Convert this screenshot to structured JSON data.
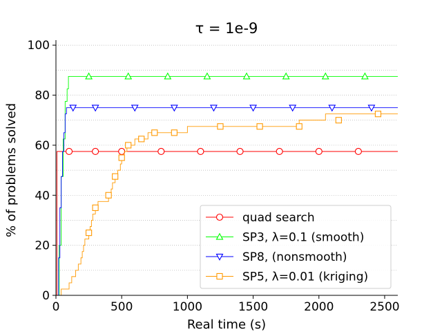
{
  "chart_data": {
    "type": "line",
    "title": "τ = 1e-9",
    "xlabel": "Real time (s)",
    "ylabel": "% of problems solved",
    "xlim": [
      0,
      2600
    ],
    "ylim": [
      0,
      102
    ],
    "xticks": [
      0,
      500,
      1000,
      1500,
      2000,
      2500
    ],
    "yticks": [
      0,
      20,
      40,
      60,
      80,
      100
    ],
    "grid": "horizontal-dotted",
    "legend_position": "lower-right",
    "series": [
      {
        "name": "quad search",
        "color": "#ff0000",
        "marker": "circle",
        "points": [
          [
            0,
            0
          ],
          [
            8,
            0
          ],
          [
            8,
            57.5
          ],
          [
            2600,
            57.5
          ]
        ],
        "markers_x": [
          100,
          300,
          500,
          800,
          1100,
          1400,
          1700,
          2000,
          2300
        ]
      },
      {
        "name": "SP3, λ=0.1 (smooth)",
        "color": "#00ff00",
        "marker": "triangle-up",
        "points": [
          [
            0,
            0
          ],
          [
            25,
            0
          ],
          [
            25,
            20
          ],
          [
            40,
            20
          ],
          [
            40,
            47.5
          ],
          [
            55,
            47.5
          ],
          [
            55,
            62.5
          ],
          [
            70,
            62.5
          ],
          [
            70,
            77.5
          ],
          [
            85,
            77.5
          ],
          [
            85,
            82.5
          ],
          [
            95,
            82.5
          ],
          [
            95,
            87.5
          ],
          [
            2600,
            87.5
          ]
        ],
        "markers_x": [
          250,
          550,
          850,
          1150,
          1450,
          1750,
          2050,
          2350
        ]
      },
      {
        "name": "SP8, (nonsmooth)",
        "color": "#0000ff",
        "marker": "triangle-down",
        "points": [
          [
            0,
            0
          ],
          [
            20,
            0
          ],
          [
            20,
            15
          ],
          [
            30,
            15
          ],
          [
            30,
            35
          ],
          [
            40,
            35
          ],
          [
            40,
            47.5
          ],
          [
            50,
            47.5
          ],
          [
            50,
            57.5
          ],
          [
            60,
            57.5
          ],
          [
            60,
            65
          ],
          [
            70,
            65
          ],
          [
            70,
            72.5
          ],
          [
            80,
            72.5
          ],
          [
            80,
            75
          ],
          [
            2600,
            75
          ]
        ],
        "markers_x": [
          130,
          300,
          600,
          900,
          1200,
          1500,
          1800,
          2100,
          2400
        ]
      },
      {
        "name": "SP5, λ=0.01 (kriging)",
        "color": "#ff9900",
        "marker": "square",
        "points": [
          [
            0,
            0
          ],
          [
            40,
            0
          ],
          [
            40,
            2.5
          ],
          [
            100,
            2.5
          ],
          [
            100,
            5
          ],
          [
            120,
            5
          ],
          [
            120,
            7.5
          ],
          [
            150,
            7.5
          ],
          [
            150,
            10
          ],
          [
            170,
            10
          ],
          [
            170,
            12.5
          ],
          [
            190,
            12.5
          ],
          [
            190,
            15
          ],
          [
            200,
            15
          ],
          [
            200,
            17.5
          ],
          [
            210,
            17.5
          ],
          [
            210,
            20
          ],
          [
            220,
            20
          ],
          [
            220,
            22.5
          ],
          [
            250,
            22.5
          ],
          [
            250,
            25
          ],
          [
            260,
            25
          ],
          [
            260,
            27.5
          ],
          [
            270,
            27.5
          ],
          [
            270,
            30
          ],
          [
            280,
            30
          ],
          [
            280,
            32.5
          ],
          [
            300,
            32.5
          ],
          [
            300,
            35
          ],
          [
            320,
            35
          ],
          [
            320,
            37.5
          ],
          [
            400,
            37.5
          ],
          [
            400,
            40
          ],
          [
            420,
            40
          ],
          [
            420,
            42.5
          ],
          [
            430,
            42.5
          ],
          [
            430,
            45
          ],
          [
            450,
            45
          ],
          [
            450,
            47.5
          ],
          [
            470,
            47.5
          ],
          [
            470,
            50
          ],
          [
            490,
            50
          ],
          [
            490,
            52.5
          ],
          [
            500,
            52.5
          ],
          [
            500,
            55
          ],
          [
            520,
            55
          ],
          [
            520,
            57.5
          ],
          [
            540,
            57.5
          ],
          [
            540,
            60
          ],
          [
            600,
            60
          ],
          [
            600,
            62.5
          ],
          [
            700,
            62.5
          ],
          [
            700,
            65
          ],
          [
            1000,
            65
          ],
          [
            1000,
            67.5
          ],
          [
            1850,
            67.5
          ],
          [
            1850,
            70
          ],
          [
            2050,
            70
          ],
          [
            2050,
            72.5
          ],
          [
            2600,
            72.5
          ]
        ],
        "markers": [
          [
            250,
            25
          ],
          [
            300,
            35
          ],
          [
            400,
            40
          ],
          [
            450,
            47.5
          ],
          [
            500,
            55
          ],
          [
            550,
            60
          ],
          [
            650,
            62.5
          ],
          [
            750,
            65
          ],
          [
            900,
            65
          ],
          [
            1250,
            67.5
          ],
          [
            1550,
            67.5
          ],
          [
            1850,
            67.5
          ],
          [
            2150,
            70
          ],
          [
            2450,
            72.5
          ]
        ]
      }
    ]
  }
}
